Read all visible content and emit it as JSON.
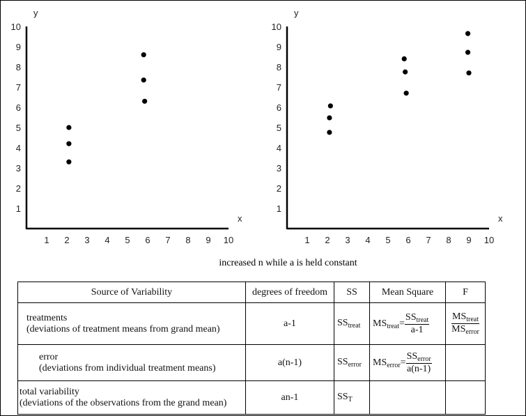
{
  "caption": "increased n while a is held constant",
  "chart_data": [
    {
      "type": "scatter",
      "xlabel": "x",
      "ylabel": "y",
      "xlim": [
        0,
        10
      ],
      "ylim": [
        0,
        10
      ],
      "xticks": [
        "1",
        "2",
        "3",
        "4",
        "5",
        "6",
        "7",
        "8",
        "9",
        "10"
      ],
      "yticks": [
        "1",
        "2",
        "3",
        "4",
        "5",
        "6",
        "7",
        "8",
        "9",
        "10"
      ],
      "points": [
        [
          2.1,
          5.0
        ],
        [
          2.1,
          4.2
        ],
        [
          2.1,
          3.3
        ],
        [
          5.8,
          8.6
        ],
        [
          5.8,
          7.35
        ],
        [
          5.85,
          6.3
        ]
      ]
    },
    {
      "type": "scatter",
      "xlabel": "x",
      "ylabel": "y",
      "xlim": [
        0,
        10
      ],
      "ylim": [
        0,
        10
      ],
      "xticks": [
        "1",
        "2",
        "3",
        "4",
        "5",
        "6",
        "7",
        "8",
        "9",
        "10"
      ],
      "yticks": [
        "1",
        "2",
        "3",
        "4",
        "5",
        "6",
        "7",
        "8",
        "9",
        "10"
      ],
      "points": [
        [
          2.15,
          6.07
        ],
        [
          2.1,
          5.48
        ],
        [
          2.1,
          4.76
        ],
        [
          5.8,
          8.4
        ],
        [
          5.85,
          7.75
        ],
        [
          5.9,
          6.7
        ],
        [
          8.95,
          9.65
        ],
        [
          8.95,
          8.72
        ],
        [
          9.0,
          7.7
        ]
      ]
    }
  ],
  "table": {
    "headers": [
      "Source of Variability",
      "degrees of freedom",
      "SS",
      "Mean Square",
      "F"
    ],
    "rows": [
      {
        "source": "treatments",
        "desc": "(deviations of treatment means from grand mean)",
        "df": "a-1",
        "ss": "SS",
        "ss_sub": "treat",
        "ms": "MS",
        "ms_sub": "treat",
        "num": "SS",
        "num_sub": "treat",
        "den": "a-1",
        "f_num": "MS",
        "f_num_sub": "treat",
        "f_den": "MS",
        "f_den_sub": "error"
      },
      {
        "source": "error",
        "desc": "(deviations from individual treatment means)",
        "df": "a(n-1)",
        "ss": "SS",
        "ss_sub": "error",
        "ms": "MS",
        "ms_sub": "error",
        "num": "SS",
        "num_sub": "error",
        "den": "a(n-1)"
      },
      {
        "source": "total variability",
        "desc": "(deviations of the observations from the grand mean)",
        "df": "an-1",
        "ss": "SS",
        "ss_sub": "T"
      }
    ],
    "eq": "="
  }
}
